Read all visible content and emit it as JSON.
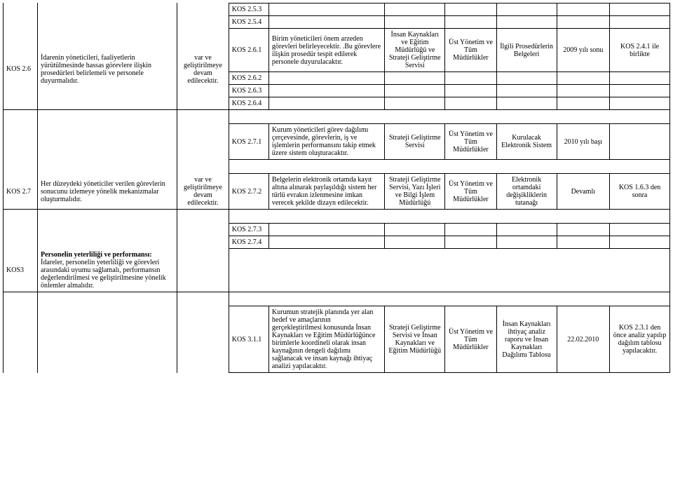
{
  "r1": {
    "code1": "KOS 2.5.3"
  },
  "r2": {
    "code1": "KOS 2.5.4"
  },
  "r3": {
    "ref": "KOS 2.6",
    "desc": "İdarenin yöneticileri, faaliyetlerin yürütülmesinde hassas görevlere ilişkin prosedürleri belirlemeli ve personele duyurmalıdır.",
    "status": "var ve geliştirilmeye devam edilecektir.",
    "code": "KOS 2.6.1",
    "detail": "Birim yöneticileri önem arzeden görevleri belirleyecektir. .Bu görevlere ilişkin prosedür tespit edilerek personele duyurulacaktır.",
    "unit": "İnsan Kaynakları ve Eğitim Müdürlüğü ve Strateji Geliştirme Servisi",
    "resp": "Üst Yönetim ve Tüm Müdürlükler",
    "doc": "İlgili Prosedürlerin Belgeleri",
    "date": "2009 yılı sonu",
    "link": "KOS 2.4.1 ile birlikte"
  },
  "r4": {
    "code": "KOS 2.6.2"
  },
  "r5": {
    "code": "KOS 2.6.3"
  },
  "r6": {
    "code": "KOS 2.6.4"
  },
  "r7": {
    "code": "KOS 2.7.1",
    "detail": "Kurum yöneticileri görev dağılımı çerçevesinde, görevlerin, iş ve işlemlerin performansını takip etmek üzere sistem oluşturacaktır.",
    "unit": "Strateji Geliştirme Servisi",
    "resp": "Üst Yönetim ve Tüm Müdürlükler",
    "doc": "Kurulacak Elektronik Sistem",
    "date": "2010 yılı başı"
  },
  "r8": {
    "ref": "KOS 2.7",
    "desc": "Her düzeydeki yöneticiler verilen görevlerin sonucunu izlemeye yönelik mekanizmalar oluşturmalıdır.",
    "status": "var ve geliştirilmeye devam edilecektir.",
    "code": "KOS 2.7.2",
    "detail": "Belgelerin elektronik ortamda kayıt altına alınarak paylaşıldığı sistem her türlü evrakın izlenmesine imkan verecek şekilde dizayn edilecektir.",
    "unit": "Strateji Geliştirme Servisi, Yazı İşleri ve Bilgi İşlem Müdürlüğü",
    "resp": "Üst Yönetim ve Tüm Müdürlükler",
    "doc": "Elektronik ortamdaki değişikliklerin tutanağı",
    "date": "Devamlı",
    "link": "KOS 1.6.3 den sonra"
  },
  "r9": {
    "code": "KOS 2.7.3"
  },
  "r10": {
    "code": "KOS 2.7.4"
  },
  "r11": {
    "ref": "KOS3",
    "title": "Personelin yeterliliği ve performansı:",
    "desc": "İdareler, personelin yeterliliği ve görevleri arasındaki uyumu sağlamalı, performansın değerlendirilmesi ve geliştirilmesine yönelik önlemler almalıdır."
  },
  "r12": {
    "code": "KOS 3.1.1",
    "detail": "Kurumun stratejik planında yer alan hedef ve amaçlarının gerçekleştirilmesi konusunda İnsan Kaynakları ve Eğitim Müdürlüğünce birimlerle koordineli olarak insan kaynağının dengeli dağılımı sağlanacak ve insan kaynağı ihtiyaç analizi yapılacaktır.",
    "unit": "Strateji Geliştirme Servisi ve İnsan Kaynakları ve Eğitim Müdürlüğü",
    "resp": "Üst Yönetim ve Tüm Müdürlükler",
    "doc": "İnsan Kaynakları ihtiyaç analiz raporu ve İnsan Kaynakları Dağılımı Tablosu",
    "date": "22.02.2010",
    "link": "KOS 2.3.1 den önce analiz yapılıp dağılım tablosu yapılacaktır."
  }
}
